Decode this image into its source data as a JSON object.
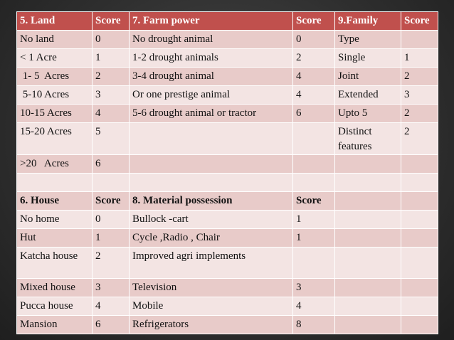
{
  "header": [
    "5. Land",
    "Score",
    "7. Farm  power",
    "Score",
    "9.Family",
    "Score"
  ],
  "rows_top": [
    [
      "No land",
      "0",
      "No drought animal",
      "0",
      "Type",
      ""
    ],
    [
      "<  1   Acre",
      "1",
      "1-2 drought animals",
      "2",
      "Single",
      "1"
    ],
    [
      " 1- 5  Acres",
      "2",
      "3-4 drought animal",
      "4",
      "Joint",
      "2"
    ],
    [
      " 5-10 Acres",
      "3",
      "Or one prestige animal",
      "4",
      "Extended",
      "3"
    ],
    [
      "10-15 Acres",
      "4",
      "5-6 drought animal or tractor",
      "6",
      "Upto 5",
      "2"
    ],
    [
      "15-20  Acres",
      "5",
      "",
      "",
      "Distinct features",
      "2"
    ],
    [
      ">20   Acres",
      "6",
      "",
      "",
      "",
      ""
    ],
    [
      "",
      "",
      "",
      "",
      "",
      ""
    ]
  ],
  "subheader": [
    "6. House",
    "Score",
    "8. Material possession",
    "Score",
    "",
    ""
  ],
  "rows_bottom": [
    [
      "No home",
      "0",
      "Bullock -cart",
      "1",
      "",
      ""
    ],
    [
      "Hut",
      "1",
      "Cycle ,Radio , Chair",
      "1",
      "",
      ""
    ],
    [
      "Katcha house",
      "2",
      "Improved agri  implements",
      "",
      "",
      ""
    ],
    [
      "Mixed house",
      "3",
      "Television",
      "3",
      "",
      ""
    ],
    [
      "Pucca house",
      "4",
      "Mobile",
      "4",
      "",
      ""
    ],
    [
      "Mansion",
      "6",
      "Refrigerators",
      "8",
      "",
      ""
    ]
  ]
}
